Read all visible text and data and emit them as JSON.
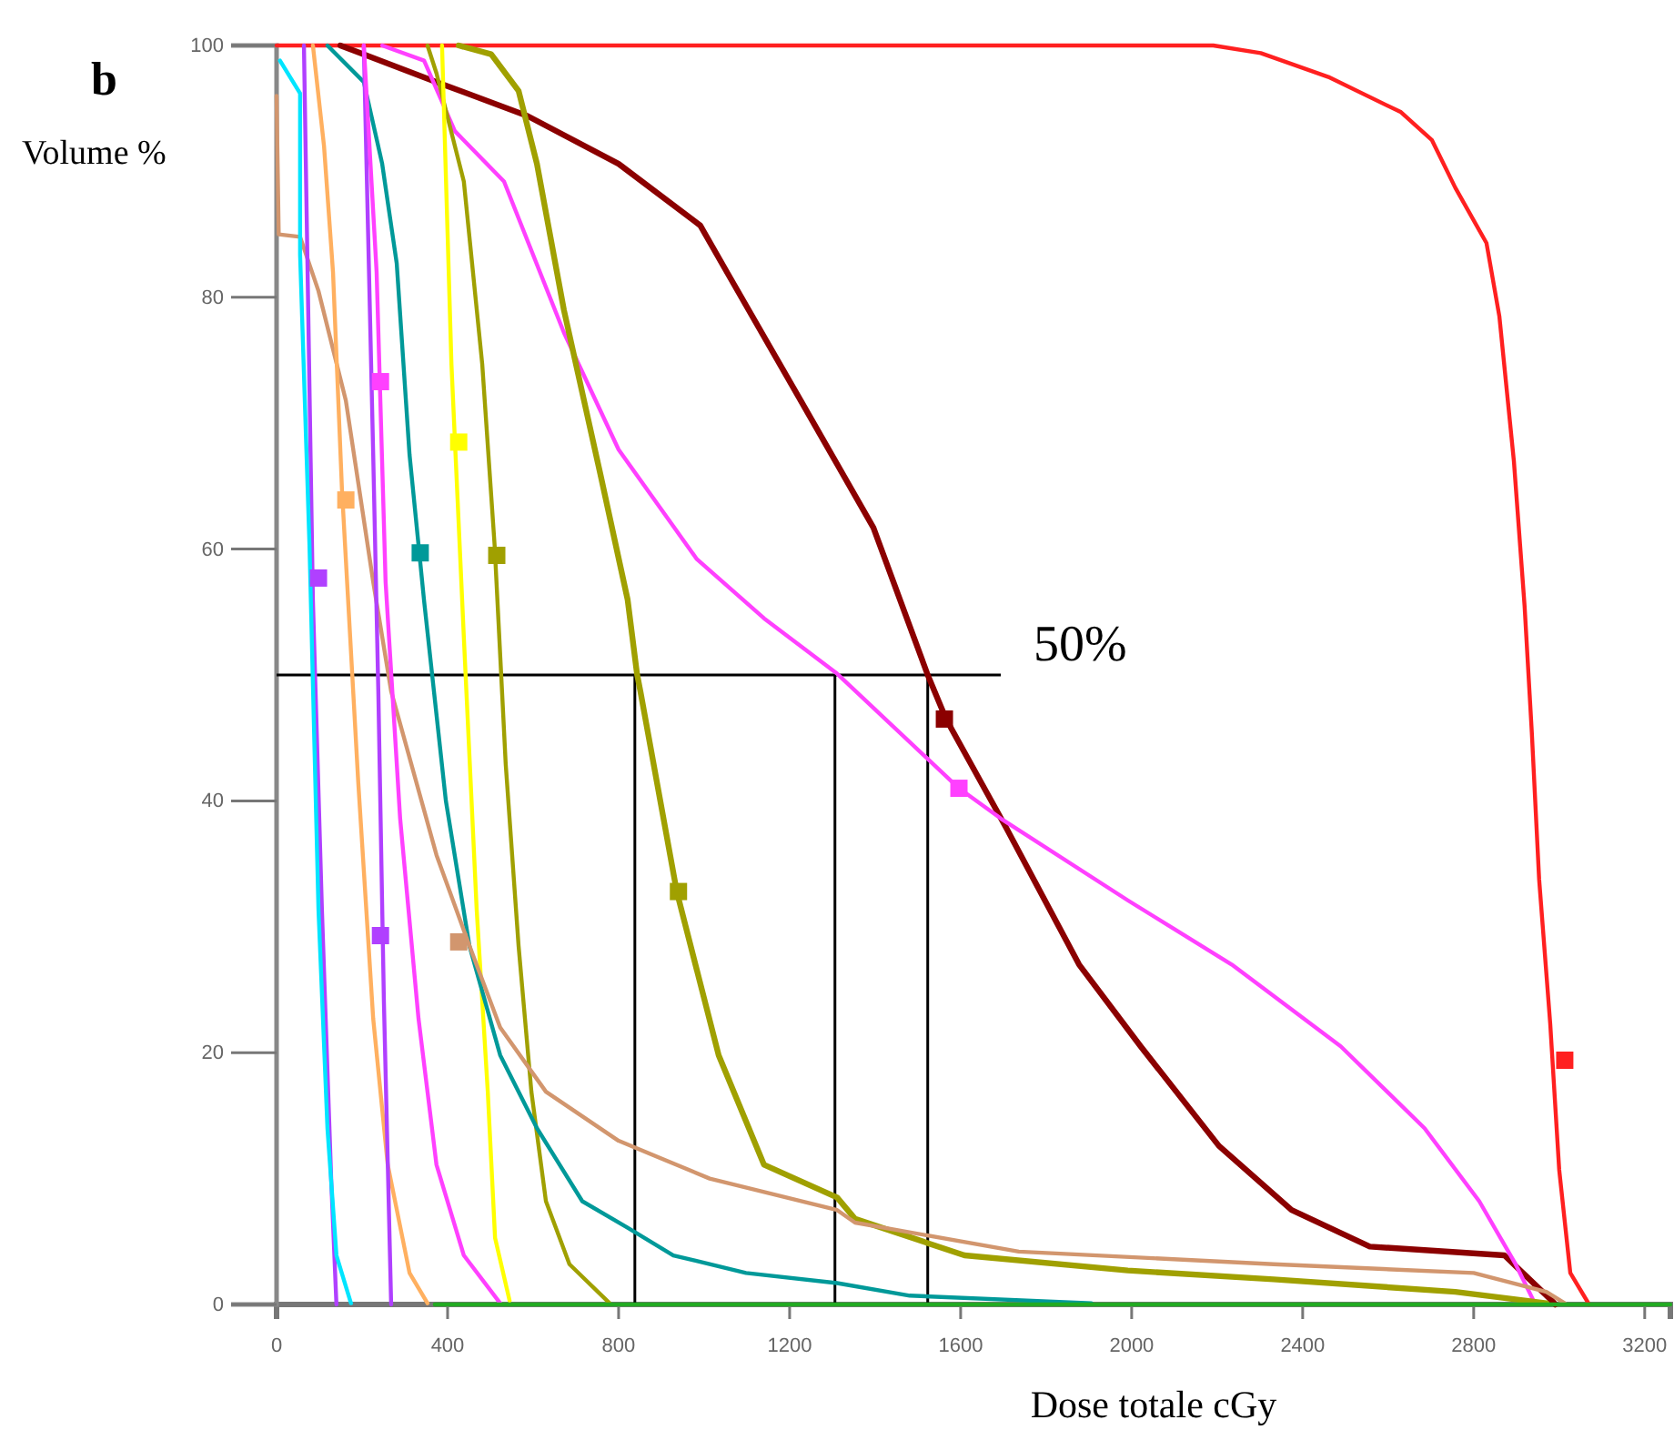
{
  "chart_data": {
    "type": "line",
    "title": "b",
    "xlabel": "Dose totale cGy",
    "ylabel": "Volume %",
    "xlim": [
      0,
      3260
    ],
    "ylim": [
      0,
      100
    ],
    "xticks": [
      0,
      400,
      800,
      1200,
      1600,
      2000,
      2400,
      2800,
      3200
    ],
    "yticks": [
      0,
      20,
      40,
      60,
      80,
      100
    ],
    "ref_lines": [
      {
        "axis": "y",
        "value": 50,
        "color": "#000000"
      },
      {
        "axis": "x",
        "value": 838,
        "color": "#000000"
      },
      {
        "axis": "x",
        "value": 1306,
        "color": "#000000"
      },
      {
        "axis": "x",
        "value": 1523,
        "color": "#000000"
      }
    ],
    "annotations": [
      {
        "text": "50%",
        "x": 1694,
        "y": 50
      }
    ],
    "series": [
      {
        "color": "#ff2020",
        "x": [
          0,
          2191,
          2302,
          2460,
          2630,
          2702,
          2757,
          2830,
          2860,
          2894,
          2919,
          2936,
          2953,
          2979,
          3000,
          3026,
          3070
        ],
        "values": [
          100,
          100,
          99.4,
          97.5,
          94.7,
          92.5,
          88.7,
          84.3,
          78.5,
          67,
          55.5,
          45.4,
          33.8,
          22.3,
          10.7,
          2.5,
          0
        ]
      },
      {
        "color": "#8b0000",
        "x": [
          149,
          204,
          374,
          587,
          800,
          991,
          1055,
          1226,
          1396,
          1523,
          1566,
          1706,
          1877,
          2021,
          2204,
          2374,
          2557,
          2872,
          2915,
          2983,
          2991
        ],
        "values": [
          100,
          99.3,
          97.1,
          94.4,
          90.6,
          85.7,
          81.9,
          71.8,
          61.7,
          50,
          46.5,
          37.9,
          27,
          20.5,
          12.6,
          7.5,
          4.6,
          3.9,
          2.5,
          0.3,
          0
        ]
      },
      {
        "color": "#ff40ff",
        "x": [
          247,
          345,
          417,
          532,
          672,
          800,
          983,
          1140,
          1311,
          1596,
          1694,
          1991,
          2234,
          2489,
          2685,
          2813,
          2898,
          2940
        ],
        "values": [
          100,
          98.8,
          93.2,
          89.2,
          77.2,
          67.9,
          59.2,
          54.5,
          50.1,
          41,
          38.6,
          32.1,
          27,
          20.5,
          14,
          8.2,
          3.2,
          0.3
        ]
      },
      {
        "color": "#a0a000",
        "x": [
          426,
          502,
          566,
          609,
          672,
          757,
          821,
          843,
          851,
          936,
          1034,
          1140,
          1311,
          1353,
          1609,
          1991,
          2332,
          2757,
          2970
        ],
        "values": [
          100,
          99.3,
          96.4,
          90.6,
          79,
          66,
          56,
          50.1,
          48.7,
          32.8,
          19.8,
          11.1,
          8.5,
          6.8,
          3.9,
          2.7,
          2,
          1,
          0.1
        ]
      },
      {
        "color": "#a0a000",
        "x": [
          353,
          374,
          438,
          481,
          510,
          536,
          566,
          596,
          630,
          685,
          779
        ],
        "values": [
          100,
          97.8,
          89.2,
          74.7,
          60.3,
          42.9,
          28.5,
          16.9,
          8.2,
          3.2,
          0.1
        ]
      },
      {
        "color": "#ffff00",
        "x": [
          387,
          409,
          438,
          468,
          494,
          511,
          545
        ],
        "values": [
          100,
          74.7,
          53,
          31.4,
          16.9,
          5.3,
          0.3
        ]
      },
      {
        "color": "#009999",
        "x": [
          119,
          204,
          247,
          281,
          311,
          345,
          396,
          451,
          523,
          609,
          715,
          821,
          928,
          1098,
          1311,
          1481,
          1906
        ],
        "values": [
          100,
          97.1,
          90.6,
          82.7,
          67.5,
          55.9,
          40,
          28.5,
          19.8,
          14,
          8.2,
          6.1,
          3.9,
          2.5,
          1.7,
          0.7,
          0.1
        ]
      },
      {
        "color": "#d2966e",
        "x": [
          0,
          5,
          55,
          98,
          162,
          226,
          268,
          374,
          451,
          523,
          630,
          800,
          1013,
          1311,
          1353,
          1736,
          2332,
          2800,
          2970,
          3013
        ],
        "values": [
          96,
          85,
          84.8,
          80.5,
          71.8,
          57.4,
          48.7,
          35.7,
          28.5,
          22,
          16.9,
          13,
          10,
          7.5,
          6.5,
          4.2,
          3.2,
          2.5,
          1,
          0.1
        ]
      },
      {
        "color": "#ffb060",
        "x": [
          85,
          111,
          132,
          153,
          191,
          226,
          260,
          311,
          353
        ],
        "values": [
          100,
          92,
          82,
          64.7,
          41.5,
          22.7,
          11.1,
          2.5,
          0.1
        ]
      },
      {
        "color": "#b040ff",
        "x": [
          64,
          85,
          106,
          128,
          140
        ],
        "values": [
          100,
          55.9,
          31.4,
          9.7,
          0
        ]
      },
      {
        "color": "#b040ff",
        "x": [
          204,
          226,
          238,
          251,
          268
        ],
        "values": [
          100,
          67.5,
          48.7,
          24.1,
          0
        ]
      },
      {
        "color": "#ff40ff",
        "x": [
          204,
          234,
          255,
          289,
          332,
          374,
          438,
          523
        ],
        "values": [
          100,
          82,
          57.4,
          38.6,
          22.7,
          11.1,
          3.9,
          0.1
        ]
      },
      {
        "color": "#00e5ff",
        "x": [
          8,
          55,
          55,
          77,
          98,
          119,
          140,
          174
        ],
        "values": [
          98.8,
          96.2,
          83.4,
          60.3,
          31.4,
          14,
          3.9,
          0.1
        ]
      },
      {
        "color": "#22aa22",
        "x": [
          370,
          3260
        ],
        "values": [
          0,
          0
        ]
      },
      {
        "type": "scatter",
        "marker": "square",
        "x": [
          3013,
          1562,
          1596,
          940,
          515,
          426,
          336,
          426,
          162,
          98,
          243,
          243
        ],
        "values": [
          19.4,
          46.5,
          41,
          32.8,
          59.5,
          68.5,
          59.7,
          28.8,
          63.9,
          57.7,
          29.3,
          73.3
        ],
        "colors": [
          "#ff2020",
          "#8b0000",
          "#ff40ff",
          "#a0a000",
          "#a0a000",
          "#ffff00",
          "#009999",
          "#d2966e",
          "#ffb060",
          "#b040ff",
          "#b040ff",
          "#ff40ff"
        ]
      }
    ]
  }
}
